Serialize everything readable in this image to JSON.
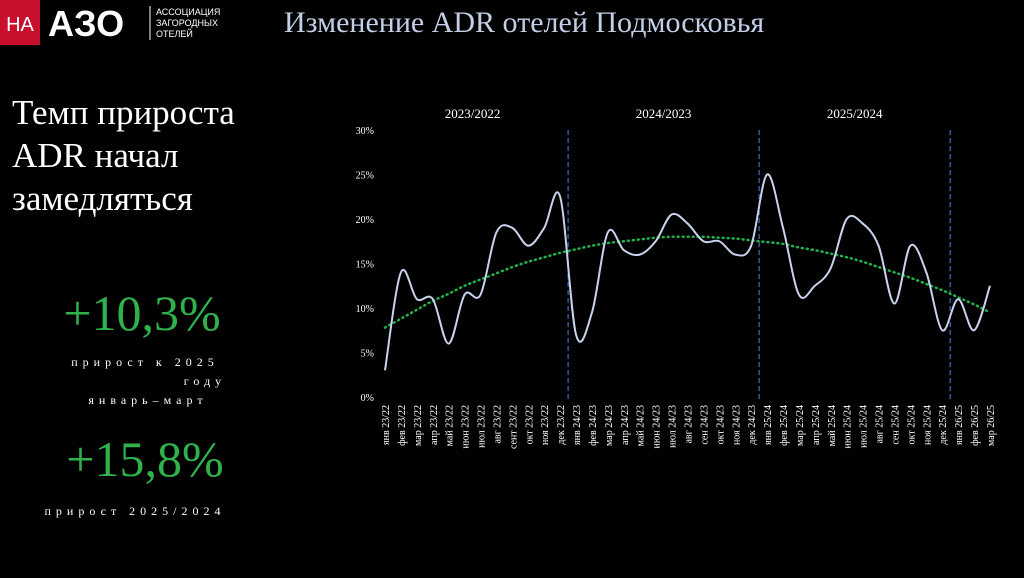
{
  "header": {
    "logo_mark": "НА",
    "logo_text": "АЗО",
    "logo_caption": [
      "АССОЦИАЦИЯ",
      "ЗАГОРОДНЫХ",
      "ОТЕЛЕЙ"
    ],
    "title": "Изменение ADR отелей Подмосковья"
  },
  "summary": {
    "headline": [
      "Темп прироста",
      "ADR начал",
      "замедляться"
    ],
    "stats": [
      {
        "value": "+10,3%",
        "caption": [
          "прирост к 2025",
          "году",
          "январь–март"
        ]
      },
      {
        "value": "+15,8%",
        "caption": [
          "прирост 2025/2024"
        ]
      }
    ]
  },
  "chart_data": {
    "type": "line",
    "periods": [
      "2023/2022",
      "2024/2023",
      "2025/2024"
    ],
    "categories": [
      "янв 23/22",
      "фев 23/22",
      "мар 23/22",
      "апр 23/22",
      "май 23/22",
      "июн 23/22",
      "июл 23/22",
      "авг 23/22",
      "сент 23/22",
      "окт 23/22",
      "ноя 23/22",
      "дек 23/22",
      "янв 24/23",
      "фев 24/23",
      "мар 24/23",
      "апр 24/23",
      "май 24/23",
      "июн 24/23",
      "июл 24/23",
      "авг 24/23",
      "сен 24/23",
      "окт 24/23",
      "ноя 24/23",
      "дек 24/23",
      "янв 25/24",
      "фев 25/24",
      "мар 25/24",
      "апр 25/24",
      "май 25/24",
      "июн 25/24",
      "июл 25/24",
      "авг 25/24",
      "сен 25/24",
      "окт 25/24",
      "ноя 25/24",
      "дек 25/24",
      "янв 26/25",
      "фев 26/25",
      "мар 26/25"
    ],
    "values": [
      3,
      14,
      11,
      11,
      6,
      11.5,
      11.5,
      18.5,
      19,
      17,
      19,
      22.5,
      7,
      9.5,
      18.5,
      16.5,
      16,
      17.5,
      20.5,
      19.5,
      17.5,
      17.5,
      16,
      17,
      25,
      19,
      11.5,
      12.5,
      14.5,
      20,
      19.5,
      17,
      10.5,
      17,
      14,
      7.5,
      11,
      7.5,
      12.5
    ],
    "color": "#c9d3ee",
    "trend": {
      "color": "#22b14c",
      "values": [
        7.8,
        8.8,
        9.8,
        10.8,
        11.6,
        12.5,
        13.2,
        13.9,
        14.6,
        15.2,
        15.7,
        16.2,
        16.6,
        17.0,
        17.3,
        17.5,
        17.7,
        17.9,
        18.0,
        18.0,
        18.0,
        17.9,
        17.8,
        17.6,
        17.4,
        17.2,
        16.8,
        16.5,
        16.1,
        15.7,
        15.2,
        14.6,
        14.0,
        13.4,
        12.7,
        12.0,
        11.2,
        10.4,
        9.5
      ]
    },
    "ylim": [
      0,
      30
    ],
    "yticks": [
      {
        "value": 0,
        "label": "0%"
      },
      {
        "value": 5,
        "label": "5%"
      },
      {
        "value": 10,
        "label": "10%"
      },
      {
        "value": 15,
        "label": "15%"
      },
      {
        "value": 20,
        "label": "20%"
      },
      {
        "value": 25,
        "label": "25%"
      },
      {
        "value": 30,
        "label": "30%"
      }
    ]
  }
}
